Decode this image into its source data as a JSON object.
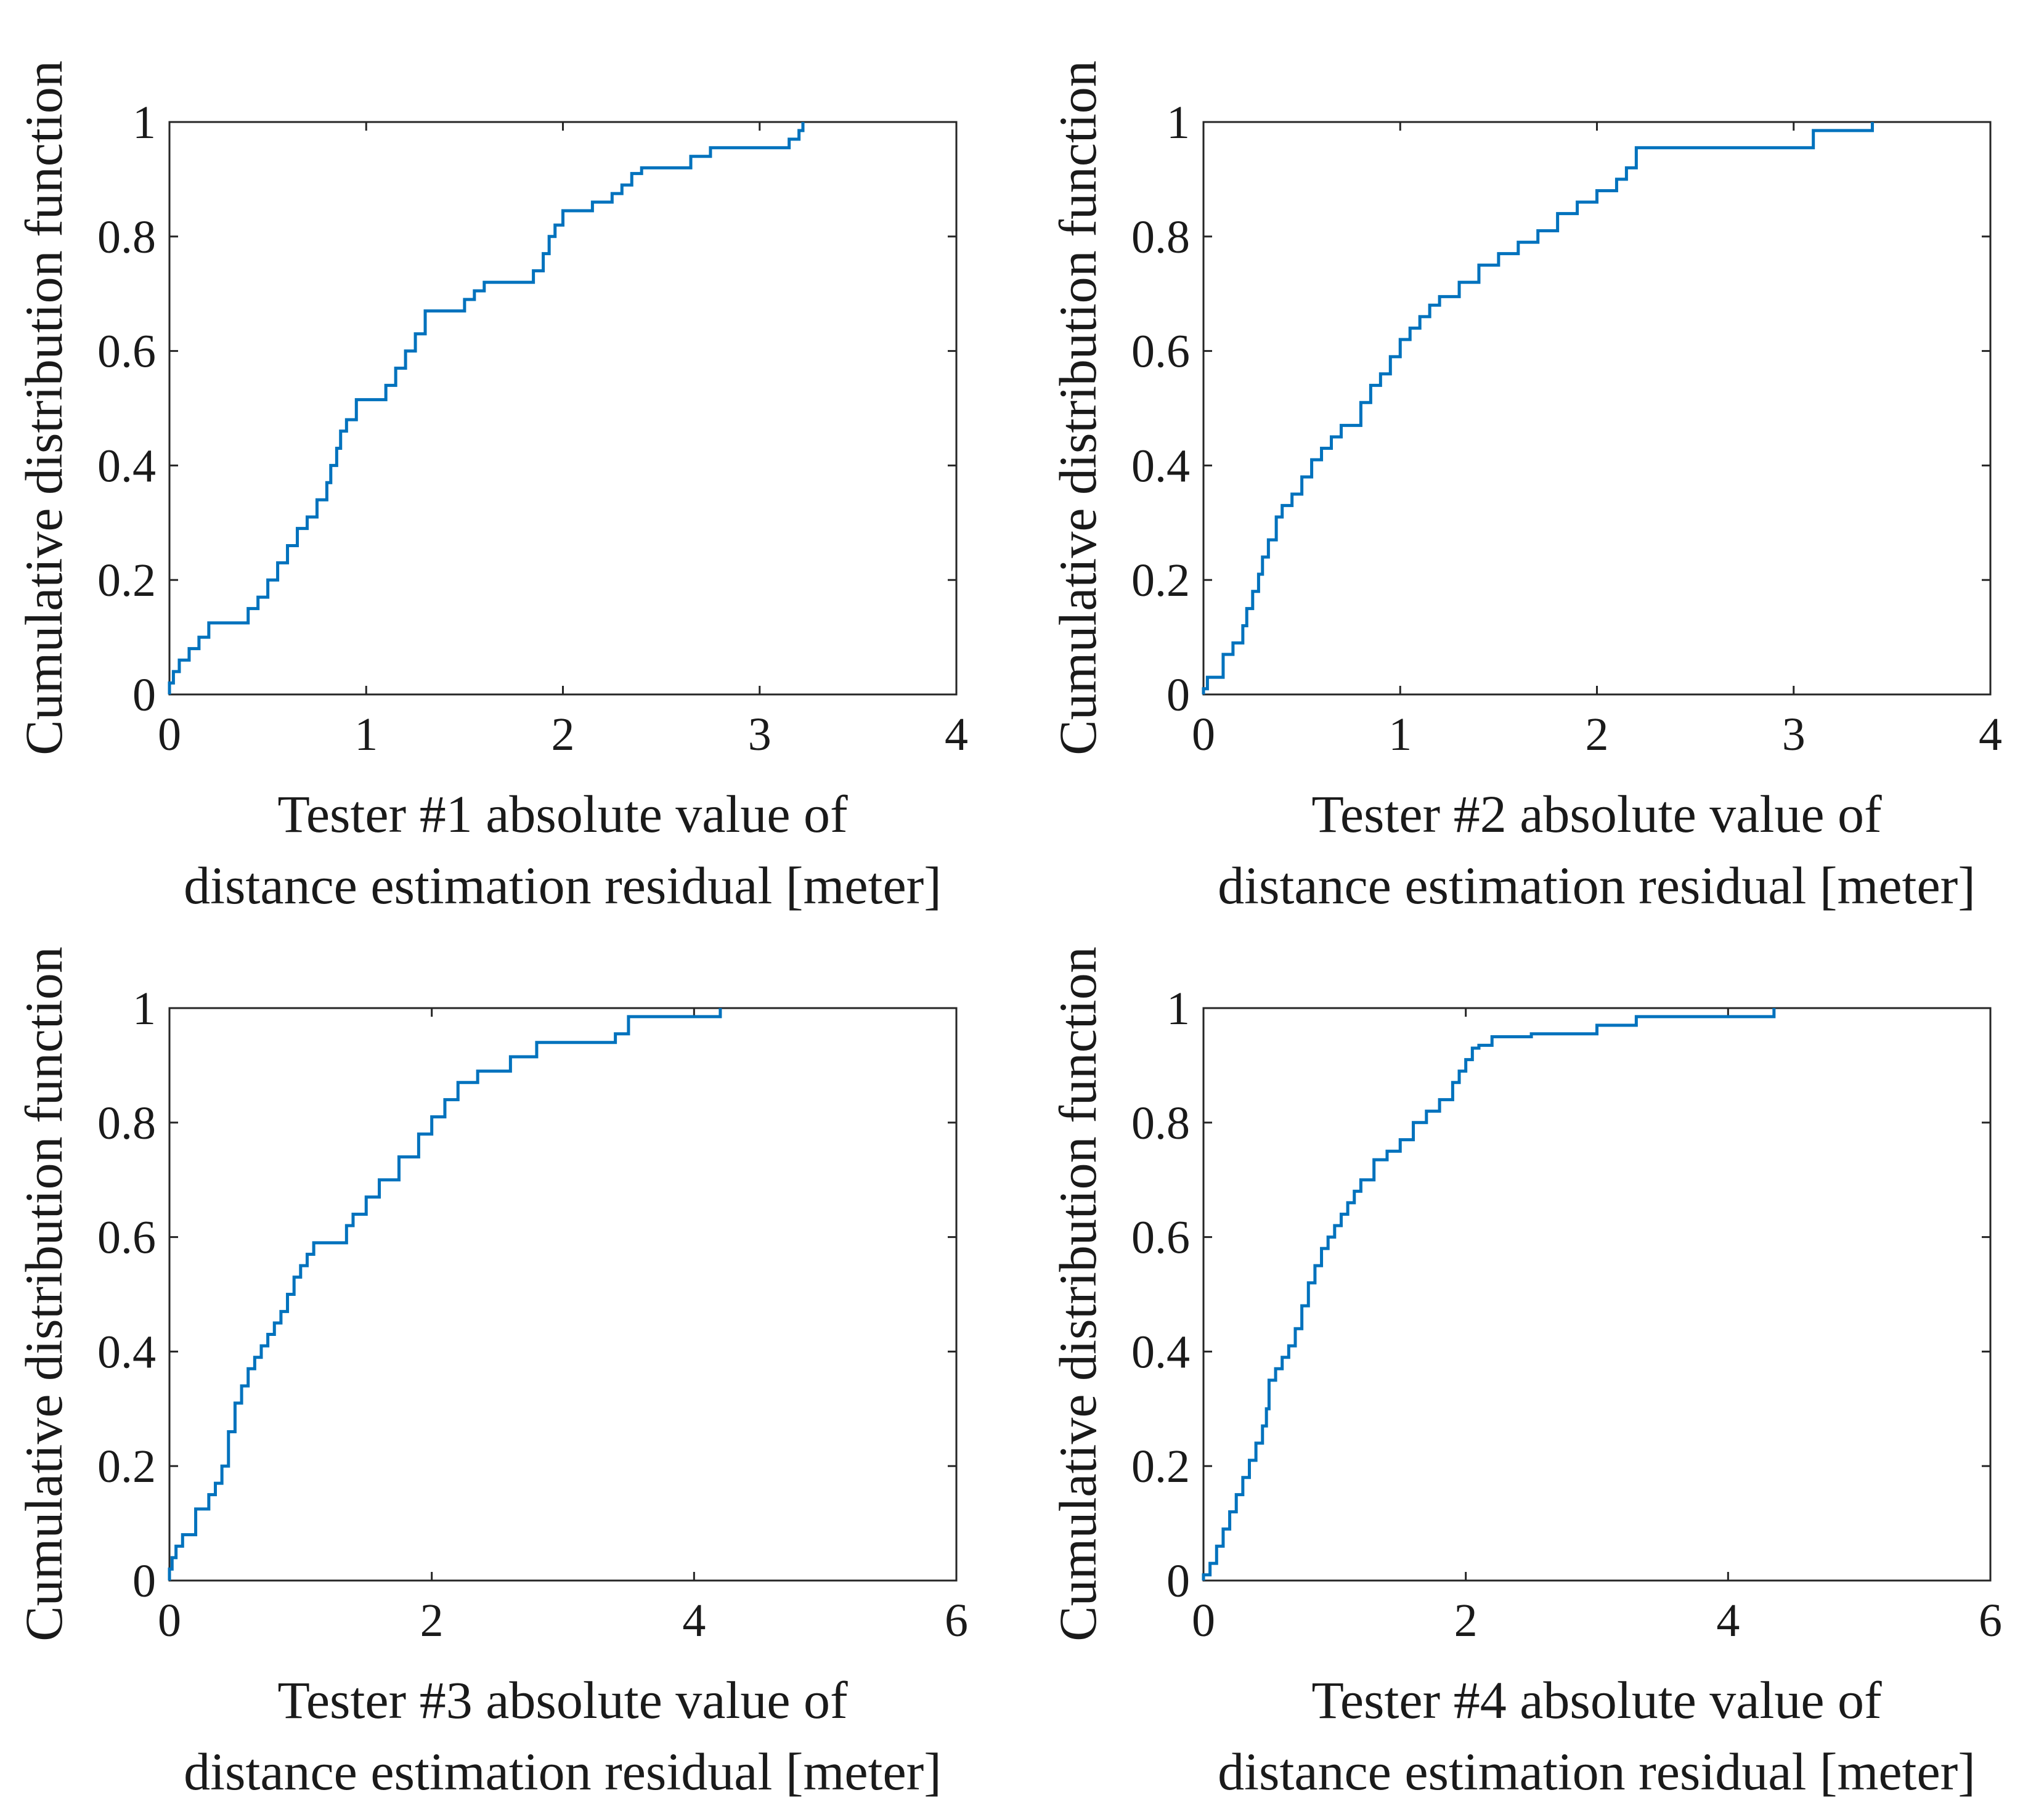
{
  "figure": {
    "line_color": "#0072BD"
  },
  "chart_data": [
    {
      "type": "line",
      "step": true,
      "xlabel": [
        "Tester #1 absolute value of",
        "distance estimation residual [meter]"
      ],
      "ylabel": "Cumulative distribution function",
      "xlim": [
        0,
        4
      ],
      "ylim": [
        0,
        1
      ],
      "xticks": [
        "0",
        "1",
        "2",
        "3",
        "4"
      ],
      "yticks": [
        "0",
        "0.2",
        "0.4",
        "0.6",
        "0.8",
        "1"
      ],
      "grid": false,
      "series": [
        {
          "name": "Tester #1",
          "x": [
            0,
            0.02,
            0.05,
            0.1,
            0.15,
            0.2,
            0.4,
            0.45,
            0.5,
            0.55,
            0.6,
            0.65,
            0.7,
            0.75,
            0.8,
            0.82,
            0.85,
            0.87,
            0.9,
            0.95,
            1.1,
            1.15,
            1.2,
            1.25,
            1.3,
            1.5,
            1.55,
            1.6,
            1.85,
            1.9,
            1.93,
            1.96,
            2.0,
            2.15,
            2.25,
            2.3,
            2.35,
            2.4,
            2.65,
            2.75,
            3.15,
            3.2,
            3.22
          ],
          "y": [
            0.02,
            0.04,
            0.06,
            0.08,
            0.1,
            0.125,
            0.15,
            0.17,
            0.2,
            0.23,
            0.26,
            0.29,
            0.31,
            0.34,
            0.37,
            0.4,
            0.43,
            0.46,
            0.48,
            0.515,
            0.54,
            0.57,
            0.6,
            0.63,
            0.67,
            0.69,
            0.705,
            0.72,
            0.74,
            0.77,
            0.8,
            0.82,
            0.845,
            0.86,
            0.875,
            0.89,
            0.91,
            0.92,
            0.94,
            0.955,
            0.97,
            0.985,
            1.0
          ]
        }
      ]
    },
    {
      "type": "line",
      "step": true,
      "xlabel": [
        "Tester #2 absolute value of",
        "distance estimation residual [meter]"
      ],
      "ylabel": "Cumulative distribution function",
      "xlim": [
        0,
        4
      ],
      "ylim": [
        0,
        1
      ],
      "xticks": [
        "0",
        "1",
        "2",
        "3",
        "4"
      ],
      "yticks": [
        "0",
        "0.2",
        "0.4",
        "0.6",
        "0.8",
        "1"
      ],
      "grid": false,
      "series": [
        {
          "name": "Tester #2",
          "x": [
            0,
            0.02,
            0.1,
            0.15,
            0.2,
            0.22,
            0.25,
            0.28,
            0.3,
            0.33,
            0.37,
            0.4,
            0.45,
            0.5,
            0.55,
            0.6,
            0.65,
            0.7,
            0.8,
            0.85,
            0.9,
            0.95,
            1.0,
            1.05,
            1.1,
            1.15,
            1.2,
            1.3,
            1.4,
            1.5,
            1.6,
            1.7,
            1.8,
            1.9,
            2.0,
            2.1,
            2.15,
            2.2,
            3.1,
            3.4
          ],
          "y": [
            0.01,
            0.03,
            0.07,
            0.09,
            0.12,
            0.15,
            0.18,
            0.21,
            0.24,
            0.27,
            0.31,
            0.33,
            0.35,
            0.38,
            0.41,
            0.43,
            0.45,
            0.47,
            0.51,
            0.54,
            0.56,
            0.59,
            0.62,
            0.64,
            0.66,
            0.68,
            0.695,
            0.72,
            0.75,
            0.77,
            0.79,
            0.81,
            0.84,
            0.86,
            0.88,
            0.9,
            0.92,
            0.955,
            0.985,
            1.0
          ]
        }
      ]
    },
    {
      "type": "line",
      "step": true,
      "xlabel": [
        "Tester #3 absolute value of",
        "distance estimation residual [meter]"
      ],
      "ylabel": "Cumulative distribution function",
      "xlim": [
        0,
        6
      ],
      "ylim": [
        0,
        1
      ],
      "xticks": [
        "0",
        "2",
        "4",
        "6"
      ],
      "yticks": [
        "0",
        "0.2",
        "0.4",
        "0.6",
        "0.8",
        "1"
      ],
      "grid": false,
      "series": [
        {
          "name": "Tester #3",
          "x": [
            0,
            0.02,
            0.05,
            0.1,
            0.2,
            0.3,
            0.35,
            0.4,
            0.45,
            0.5,
            0.55,
            0.6,
            0.65,
            0.7,
            0.75,
            0.8,
            0.85,
            0.9,
            0.95,
            1.0,
            1.05,
            1.1,
            1.35,
            1.4,
            1.5,
            1.6,
            1.75,
            1.9,
            2.0,
            2.1,
            2.2,
            2.35,
            2.6,
            2.8,
            3.4,
            3.5,
            4.2
          ],
          "y": [
            0.02,
            0.04,
            0.06,
            0.08,
            0.125,
            0.15,
            0.17,
            0.2,
            0.26,
            0.31,
            0.34,
            0.37,
            0.39,
            0.41,
            0.43,
            0.45,
            0.47,
            0.5,
            0.53,
            0.55,
            0.57,
            0.59,
            0.62,
            0.64,
            0.67,
            0.7,
            0.74,
            0.78,
            0.81,
            0.84,
            0.87,
            0.89,
            0.915,
            0.94,
            0.955,
            0.985,
            1.0
          ]
        }
      ]
    },
    {
      "type": "line",
      "step": true,
      "xlabel": [
        "Tester #4 absolute value of",
        "distance estimation residual [meter]"
      ],
      "ylabel": "Cumulative distribution function",
      "xlim": [
        0,
        6
      ],
      "ylim": [
        0,
        1
      ],
      "xticks": [
        "0",
        "2",
        "4",
        "6"
      ],
      "yticks": [
        "0",
        "0.2",
        "0.4",
        "0.6",
        "0.8",
        "1"
      ],
      "grid": false,
      "series": [
        {
          "name": "Tester #4",
          "x": [
            0,
            0.05,
            0.1,
            0.15,
            0.2,
            0.25,
            0.3,
            0.35,
            0.4,
            0.45,
            0.48,
            0.5,
            0.55,
            0.6,
            0.65,
            0.7,
            0.75,
            0.8,
            0.85,
            0.9,
            0.95,
            1.0,
            1.05,
            1.1,
            1.15,
            1.2,
            1.3,
            1.4,
            1.5,
            1.6,
            1.7,
            1.8,
            1.9,
            1.95,
            2.0,
            2.05,
            2.1,
            2.2,
            2.5,
            3.0,
            3.3,
            4.35
          ],
          "y": [
            0.01,
            0.03,
            0.06,
            0.09,
            0.12,
            0.15,
            0.18,
            0.21,
            0.24,
            0.27,
            0.3,
            0.35,
            0.37,
            0.39,
            0.41,
            0.44,
            0.48,
            0.52,
            0.55,
            0.58,
            0.6,
            0.62,
            0.64,
            0.66,
            0.68,
            0.7,
            0.735,
            0.75,
            0.77,
            0.8,
            0.82,
            0.84,
            0.87,
            0.89,
            0.91,
            0.93,
            0.935,
            0.95,
            0.955,
            0.97,
            0.985,
            1.0
          ]
        }
      ]
    }
  ]
}
